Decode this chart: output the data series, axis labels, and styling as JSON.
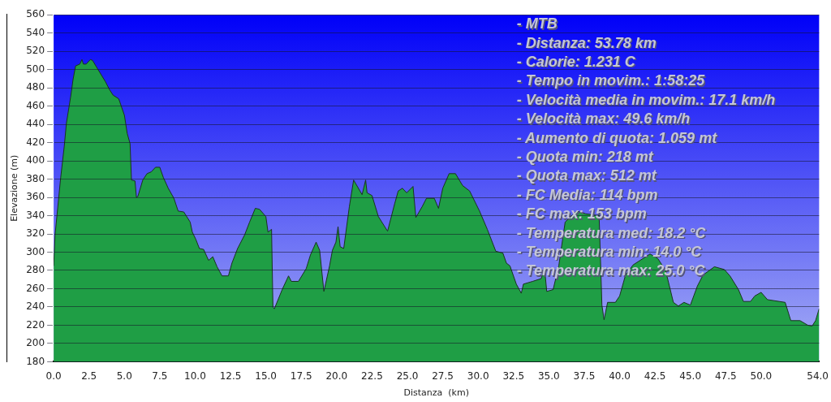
{
  "chart_data": {
    "type": "area",
    "xlabel": "Distanza  (km)",
    "ylabel": "Elevazione (m)",
    "xlim": [
      0,
      54.1
    ],
    "ylim": [
      180,
      560
    ],
    "xticks": [
      {
        "value": 0,
        "label": "0.0"
      },
      {
        "value": 2.5,
        "label": "2.5"
      },
      {
        "value": 5,
        "label": "5.0"
      },
      {
        "value": 7.5,
        "label": "7.5"
      },
      {
        "value": 10,
        "label": "10.0"
      },
      {
        "value": 12.5,
        "label": "12.5"
      },
      {
        "value": 15,
        "label": "15.0"
      },
      {
        "value": 17.5,
        "label": "17.5"
      },
      {
        "value": 20,
        "label": "20.0"
      },
      {
        "value": 22.5,
        "label": "22.5"
      },
      {
        "value": 25,
        "label": "25.0"
      },
      {
        "value": 27.5,
        "label": "27.5"
      },
      {
        "value": 30,
        "label": "30.0"
      },
      {
        "value": 32.5,
        "label": "32.5"
      },
      {
        "value": 35,
        "label": "35.0"
      },
      {
        "value": 37.5,
        "label": "37.5"
      },
      {
        "value": 40,
        "label": "40.0"
      },
      {
        "value": 42.5,
        "label": "42.5"
      },
      {
        "value": 45,
        "label": "45.0"
      },
      {
        "value": 47.5,
        "label": "47.5"
      },
      {
        "value": 50,
        "label": "50.0"
      },
      {
        "value": 54,
        "label": "54.0"
      }
    ],
    "yticks": [
      180,
      200,
      220,
      240,
      260,
      280,
      300,
      320,
      340,
      360,
      380,
      400,
      420,
      440,
      460,
      480,
      500,
      520,
      540,
      560
    ],
    "grid": "y",
    "annotations": [
      "- MTB",
      "- Distanza: 53.78 km",
      "- Calorie: 1.231 C",
      "- Tempo in movim.: 1:58:25",
      "- Velocità media in movim.: 17.1 km/h",
      "- Velocità max: 49.6 km/h",
      "- Aumento di quota: 1.059 mt",
      "- Quota min: 218 mt",
      "- Quota max: 512 mt",
      "- FC Media: 114 bpm",
      "- FC max: 153 bpm",
      "- Temperatura med: 18.2 °C",
      "- Temperatura min: 14.0 °C",
      "- Temperatura max: 25.0 °C"
    ],
    "series": [
      {
        "color": "#1f9e45",
        "x": [
          0,
          0.1,
          0.5,
          0.75,
          0.9,
          1.2,
          1.37,
          1.55,
          1.85,
          2.0,
          2.1,
          2.3,
          2.6,
          2.75,
          3.1,
          3.65,
          3.95,
          4.2,
          4.6,
          5.0,
          5.2,
          5.4,
          5.5,
          5.75,
          5.85,
          5.95,
          6.3,
          6.6,
          6.9,
          7.2,
          7.5,
          7.75,
          8.1,
          8.5,
          8.8,
          9.2,
          9.65,
          9.8,
          10.05,
          10.3,
          10.6,
          10.95,
          11.25,
          11.55,
          11.9,
          12.35,
          12.6,
          13.0,
          13.5,
          13.85,
          14.25,
          14.55,
          15.0,
          15.15,
          15.4,
          15.5,
          15.6,
          16.15,
          16.6,
          16.8,
          17.3,
          17.85,
          18.15,
          18.55,
          18.8,
          19.1,
          19.5,
          19.7,
          19.95,
          20.1,
          20.25,
          20.5,
          20.9,
          21.2,
          21.8,
          22.05,
          22.15,
          22.5,
          22.95,
          23.6,
          24.1,
          24.35,
          24.65,
          24.95,
          25.4,
          25.6,
          26.05,
          26.35,
          26.9,
          27.2,
          27.5,
          27.95,
          28.4,
          28.9,
          29.4,
          30.1,
          30.65,
          31.25,
          31.75,
          32.0,
          32.25,
          32.7,
          33.05,
          33.2,
          33.85,
          34.45,
          34.7,
          34.85,
          35.3,
          35.7,
          36.15,
          36.95,
          37.6,
          38.55,
          38.75,
          38.9,
          39.15,
          39.7,
          40.0,
          40.4,
          40.95,
          42.15,
          42.7,
          43.25,
          43.8,
          44.15,
          44.55,
          45.0,
          45.5,
          45.9,
          46.7,
          47.4,
          47.8,
          48.4,
          48.75,
          49.25,
          49.55,
          50.0,
          50.45,
          51.7,
          52.1,
          52.75,
          53.3,
          53.6,
          53.85,
          54.1
        ],
        "values": [
          285,
          319,
          382,
          416,
          441,
          470,
          489,
          504,
          506,
          511,
          506,
          506,
          511,
          510,
          501,
          487,
          478,
          472,
          468,
          450,
          430,
          419,
          379,
          378,
          360,
          361,
          379,
          386,
          388,
          393,
          393,
          382,
          370,
          359,
          345,
          344,
          333,
          322,
          314,
          304,
          303,
          291,
          295,
          284,
          274,
          274,
          288,
          304,
          319,
          333,
          348,
          347,
          339,
          322,
          325,
          240,
          238,
          259,
          274,
          268,
          268,
          282,
          297,
          311,
          302,
          257,
          285,
          302,
          311,
          328,
          306,
          304,
          350,
          379,
          363,
          379,
          365,
          362,
          339,
          323,
          353,
          367,
          370,
          365,
          372,
          338,
          350,
          359,
          359,
          348,
          370,
          386,
          386,
          373,
          367,
          345,
          325,
          301,
          299,
          288,
          285,
          265,
          255,
          265,
          268,
          271,
          282,
          257,
          259,
          285,
          333,
          345,
          342,
          340,
          242,
          226,
          245,
          245,
          252,
          274,
          286,
          298,
          293,
          280,
          245,
          241,
          245,
          242,
          263,
          275,
          284,
          281,
          274,
          259,
          246,
          246,
          252,
          256,
          248,
          245,
          225,
          225,
          220,
          219,
          225,
          238
        ]
      }
    ]
  }
}
